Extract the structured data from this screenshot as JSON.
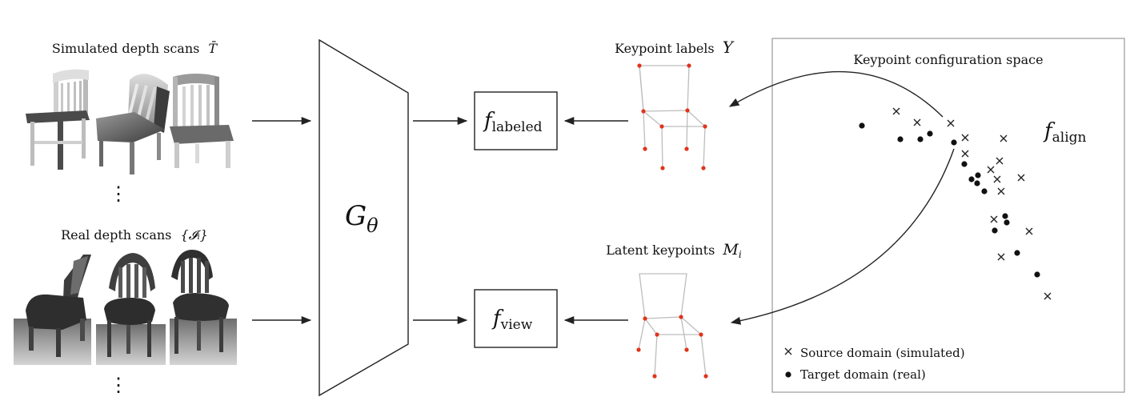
{
  "inputs": {
    "simulated_title": "Simulated depth scans",
    "simulated_symbol": "T̄",
    "real_title": "Real depth scans",
    "real_symbol": "{𝓘ᵢ}",
    "ellipsis": "⋮"
  },
  "network": {
    "symbol": "G",
    "subscript": "θ"
  },
  "losses": {
    "labeled_f": "f",
    "labeled_sub": "labeled",
    "view_f": "f",
    "view_sub": "view",
    "align_f": "f",
    "align_sub": "align"
  },
  "keypoints": {
    "labels_title": "Keypoint labels",
    "labels_symbol": "Y",
    "latent_title": "Latent keypoints",
    "latent_symbol": "M",
    "latent_sub": "i"
  },
  "config_space": {
    "title": "Keypoint configuration space",
    "legend_source": "Source domain (simulated)",
    "legend_target": "Target domain (real)",
    "source_marker": "×",
    "target_marker": "•"
  },
  "colors": {
    "keypoint": "#e0341c",
    "skeleton": "#bdbdbd",
    "line": "#222222"
  }
}
